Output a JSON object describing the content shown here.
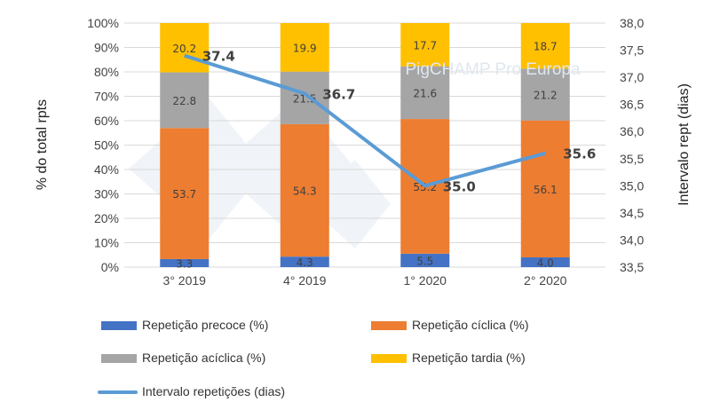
{
  "chart_data": {
    "type": "bar",
    "stacked": true,
    "categories": [
      "3° 2019",
      "4° 2019",
      "1° 2020",
      "2° 2020"
    ],
    "series": [
      {
        "name": "Repetição precoce (%)",
        "color": "#4472c4",
        "values": [
          3.3,
          4.3,
          5.5,
          4.0
        ]
      },
      {
        "name": "Repetição cíclica (%)",
        "color": "#ed7d31",
        "values": [
          53.7,
          54.3,
          55.2,
          56.1
        ]
      },
      {
        "name": "Repetição acíclica (%)",
        "color": "#a5a5a5",
        "values": [
          22.8,
          21.5,
          21.6,
          21.2
        ]
      },
      {
        "name": "Repetição tardia (%)",
        "color": "#ffc000",
        "values": [
          20.2,
          19.9,
          17.7,
          18.7
        ]
      }
    ],
    "line_series": {
      "name": "Intervalo repetições (dias)",
      "color": "#5b9bd5",
      "values": [
        37.4,
        36.7,
        35.0,
        35.6
      ],
      "labels": [
        "37.4",
        "36.7",
        "35.0",
        "35.6"
      ],
      "axis": "right"
    },
    "ylabel": "% do total rpts",
    "ylabel_right": "Intervalo rept (dias)",
    "ylim": [
      0,
      100
    ],
    "ylim_right": [
      33.5,
      38.0
    ],
    "yticks": [
      "0%",
      "10%",
      "20%",
      "30%",
      "40%",
      "50%",
      "60%",
      "70%",
      "80%",
      "90%",
      "100%"
    ],
    "yticks_right": [
      "33,5",
      "34,0",
      "34,5",
      "35,0",
      "35,5",
      "36,0",
      "36,5",
      "37,0",
      "37,5",
      "38,0"
    ],
    "grid": true,
    "legend": "bottom"
  },
  "watermark": "PigCHAMP Pro Europa"
}
